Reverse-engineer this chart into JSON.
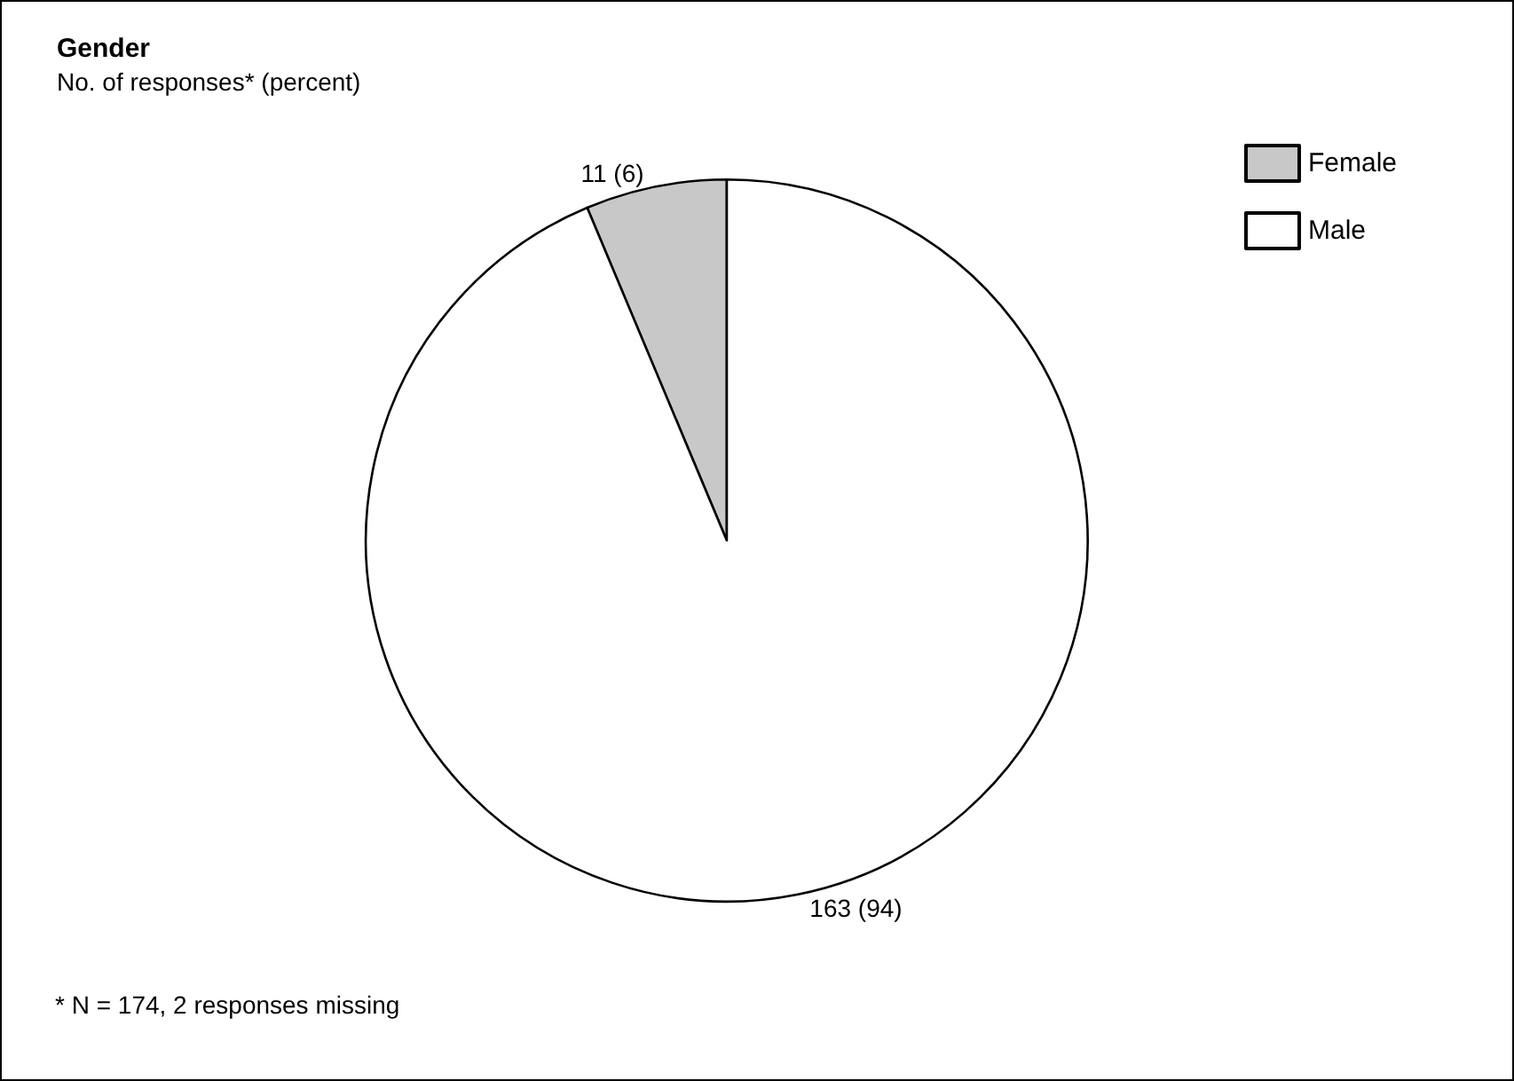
{
  "chart_data": {
    "type": "pie",
    "title": "Gender",
    "subtitle": "No. of responses* (percent)",
    "categories": [
      "Female",
      "Male"
    ],
    "values": [
      11,
      163
    ],
    "colors": [
      "#c8c8c8",
      "#ffffff"
    ],
    "value_labels": [
      "11 (6)",
      "163 (94)"
    ],
    "legend": "top right",
    "annotations": [
      "* N = 174, 2 responses missing"
    ]
  }
}
